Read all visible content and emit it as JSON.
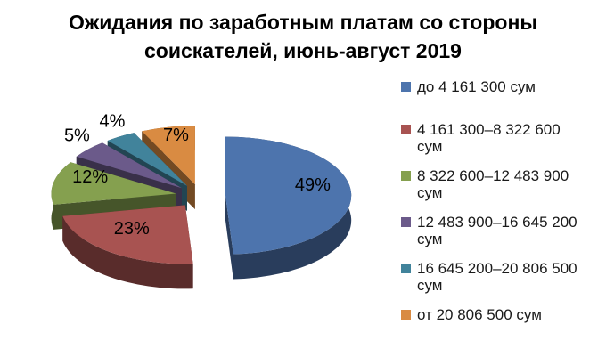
{
  "chart_data": {
    "type": "pie",
    "style": "3d-exploded",
    "title": "Ожидания по заработным платам со стороны соискателей, июнь-август 2019",
    "currency_unit": "сум",
    "legend_position": "right",
    "start_angle_deg": 0,
    "direction": "clockwise",
    "background_color": "#ffffff",
    "title_color": "#000000",
    "data_label_color": "#000000",
    "slices": [
      {
        "label": "до 4 161 300 сум",
        "label_lines": [
          "до 4 161 300 сум"
        ],
        "value": 49,
        "data_label": "49%",
        "color": "#4d74ad",
        "data_label_placement": "inside"
      },
      {
        "label": "4 161 300–8 322 600 сум",
        "label_lines": [
          "4 161 300–8 322 600",
          "сум"
        ],
        "value": 23,
        "data_label": "23%",
        "color": "#a85351",
        "data_label_placement": "inside"
      },
      {
        "label": "8 322 600–12 483 900 сум",
        "label_lines": [
          "8 322 600–12 483 900",
          "сум"
        ],
        "value": 12,
        "data_label": "12%",
        "color": "#85a04f",
        "data_label_placement": "inside"
      },
      {
        "label": "12 483 900–16 645 200 сум",
        "label_lines": [
          "12 483 900–16 645 200",
          "сум"
        ],
        "value": 5,
        "data_label": "5%",
        "color": "#6b5a8a",
        "data_label_placement": "outside"
      },
      {
        "label": "16 645 200–20 806 500 сум",
        "label_lines": [
          "16 645 200–20 806 500",
          "сум"
        ],
        "value": 4,
        "data_label": "4%",
        "color": "#41839b",
        "data_label_placement": "outside"
      },
      {
        "label": "от 20 806 500 сум",
        "label_lines": [
          "от 20 806 500 сум"
        ],
        "value": 7,
        "data_label": "7%",
        "color": "#d98b42",
        "data_label_placement": "inside"
      }
    ]
  }
}
